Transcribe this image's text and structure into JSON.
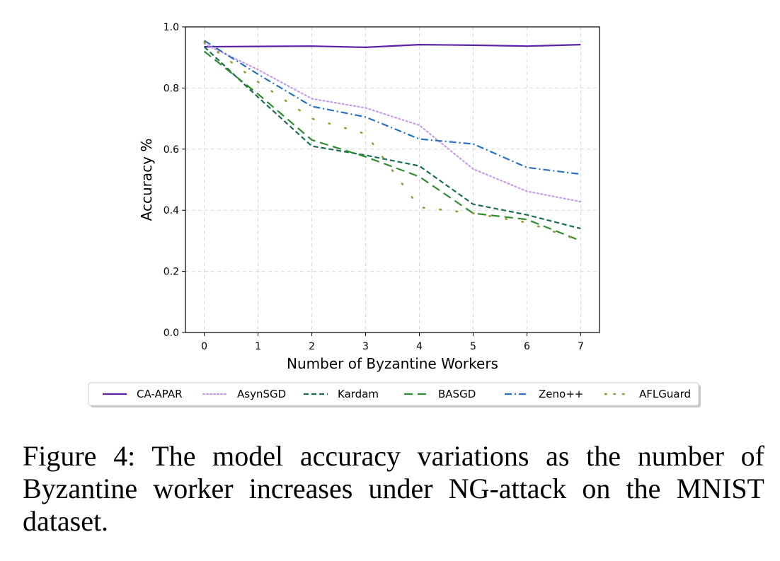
{
  "chart_data": {
    "type": "line",
    "title": "",
    "xlabel": "Number of Byzantine Workers",
    "ylabel": "Accuracy %",
    "x": [
      0,
      1,
      2,
      3,
      4,
      5,
      6,
      7
    ],
    "xlim": [
      -0.35,
      7.35
    ],
    "ylim": [
      0.0,
      1.0
    ],
    "xticks": [
      "0",
      "1",
      "2",
      "3",
      "4",
      "5",
      "6",
      "7"
    ],
    "yticks": [
      "0.0",
      "0.2",
      "0.4",
      "0.6",
      "0.8",
      "1.0"
    ],
    "grid": true,
    "legend_placement": "bottom (below chart)",
    "series": [
      {
        "name": "CA-APAR",
        "color": "#5b21a8",
        "dash": "solid",
        "width": 2.2,
        "values": [
          0.935,
          0.936,
          0.937,
          0.933,
          0.942,
          0.94,
          0.937,
          0.942
        ]
      },
      {
        "name": "AsynSGD",
        "color": "#c79be6",
        "dash": "dotted",
        "width": 2.2,
        "values": [
          0.945,
          0.86,
          0.765,
          0.735,
          0.678,
          0.535,
          0.462,
          0.428
        ]
      },
      {
        "name": "Kardam",
        "color": "#196c57",
        "dash": "dashed",
        "width": 2.2,
        "values": [
          0.935,
          0.77,
          0.61,
          0.58,
          0.545,
          0.42,
          0.385,
          0.34
        ]
      },
      {
        "name": "BASGD",
        "color": "#2f8c2f",
        "dash": "longdash",
        "width": 2.2,
        "values": [
          0.92,
          0.78,
          0.63,
          0.575,
          0.51,
          0.39,
          0.37,
          0.3
        ]
      },
      {
        "name": "Zeno++",
        "color": "#2770c4",
        "dash": "dashdot",
        "width": 2.2,
        "values": [
          0.955,
          0.845,
          0.74,
          0.705,
          0.633,
          0.617,
          0.54,
          0.518
        ]
      },
      {
        "name": "AFLGuard",
        "color": "#9a9a34",
        "dash": "sparse",
        "width": 2.6,
        "values": [
          0.95,
          0.82,
          0.7,
          0.65,
          0.41,
          0.39,
          0.36,
          0.3
        ]
      }
    ]
  },
  "caption": "Figure 4: The model accuracy variations as the number of Byzantine worker increases under NG-attack on the MNIST dataset."
}
